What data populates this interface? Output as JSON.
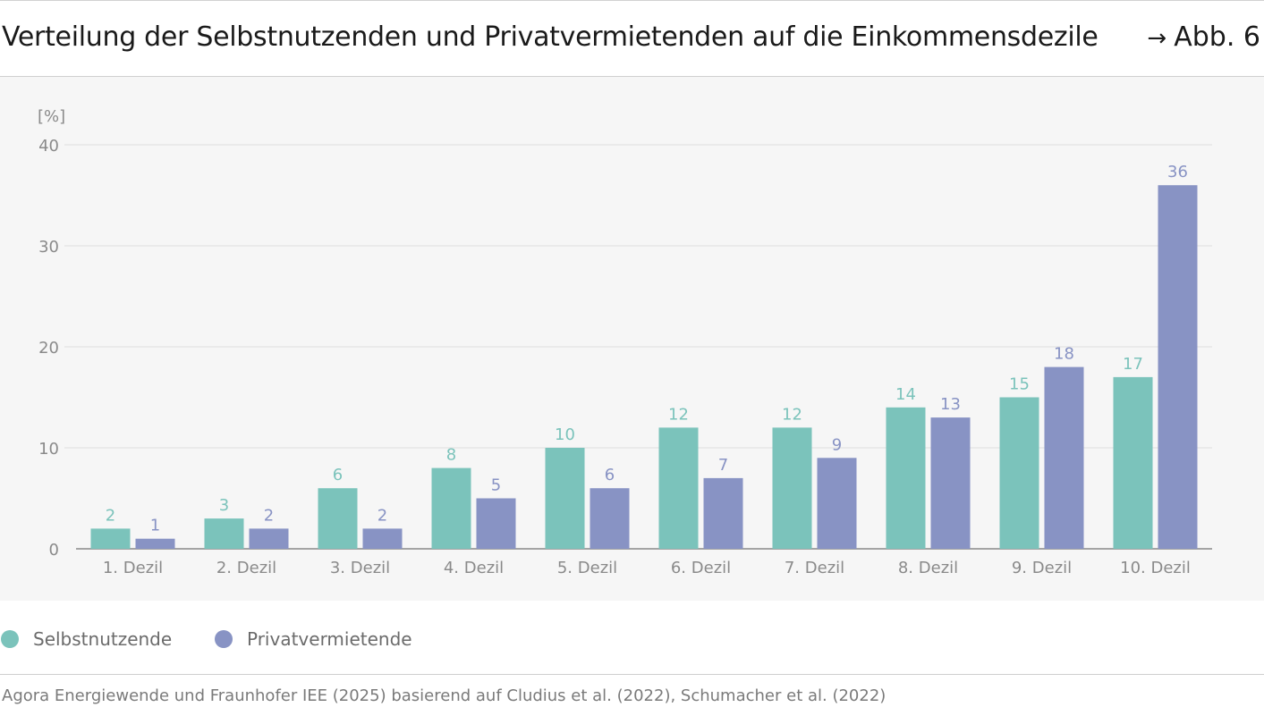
{
  "header": {
    "title": "Verteilung der Selbstnutzenden und Privatvermietenden auf die Einkommensdezile",
    "figure_ref": "Abb. 6"
  },
  "colors": {
    "series_1": "#7bc3bb",
    "series_2": "#8893c4",
    "axis": "#888888",
    "grid": "#e6e6e6",
    "background": "#f6f6f6"
  },
  "chart_data": {
    "type": "bar",
    "title": "Verteilung der Selbstnutzenden und Privatvermietenden auf die Einkommensdezile",
    "ylabel": "[%]",
    "xlabel": "",
    "ylim": [
      0,
      40
    ],
    "yticks": [
      0,
      10,
      20,
      30,
      40
    ],
    "grid": true,
    "legend_position": "bottom-left",
    "categories": [
      "1. Dezil",
      "2. Dezil",
      "3. Dezil",
      "4. Dezil",
      "5. Dezil",
      "6. Dezil",
      "7. Dezil",
      "8. Dezil",
      "9. Dezil",
      "10. Dezil"
    ],
    "series": [
      {
        "name": "Selbstnutzende",
        "values": [
          2,
          3,
          6,
          8,
          10,
          12,
          12,
          14,
          15,
          17
        ]
      },
      {
        "name": "Privatvermietende",
        "values": [
          1,
          2,
          2,
          5,
          6,
          7,
          9,
          13,
          18,
          36
        ]
      }
    ]
  },
  "legend": {
    "items": [
      {
        "label": "Selbstnutzende"
      },
      {
        "label": "Privatvermietende"
      }
    ]
  },
  "footer": {
    "source": "Agora Energiewende und Fraunhofer IEE (2025) basierend auf Cludius et al. (2022), Schumacher et al. (2022)"
  }
}
